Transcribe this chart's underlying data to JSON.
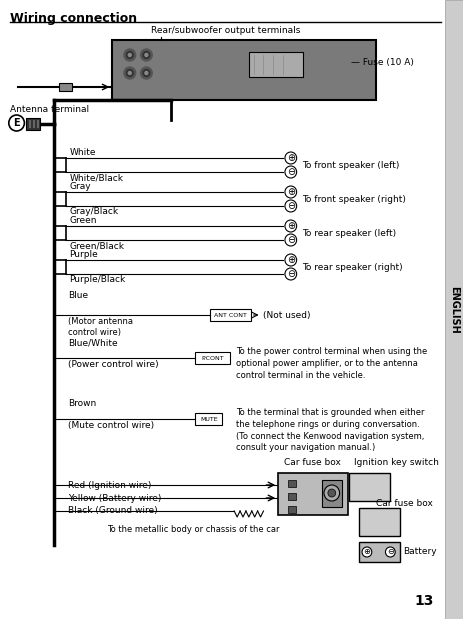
{
  "title": "Wiring connection",
  "bg_color": "#f5f5f0",
  "page_number": "13",
  "sidebar_text": "ENGLISH",
  "sections": [
    {
      "label_top": "White",
      "label_bot": "White/Black",
      "destination": "To front speaker (left)"
    },
    {
      "label_top": "Gray",
      "label_bot": "Gray/Black",
      "destination": "To front speaker (right)"
    },
    {
      "label_top": "Green",
      "label_bot": "Green/Black",
      "destination": "To rear speaker (left)"
    },
    {
      "label_top": "Purple",
      "label_bot": "Purple/Black",
      "destination": "To rear speaker (right)"
    }
  ],
  "antenna_label": "Antenna terminal",
  "rear_label": "Rear/subwoofer output terminals",
  "fuse_label": "Fuse (10 A)",
  "blue_wire": {
    "label_top": "Blue",
    "label_bot": "(Motor antenna\ncontrol wire)",
    "connector_label": "ANT CONT",
    "destination": "(Not used)"
  },
  "blue_white_wire": {
    "label_top": "Blue/White",
    "label_bot": "(Power control wire)",
    "connector_label": "P.CONT",
    "destination": "To the power control terminal when using the\noptional power amplifier, or to the antenna\ncontrol terminal in the vehicle."
  },
  "brown_wire": {
    "label_top": "Brown",
    "label_bot": "(Mute control wire)",
    "connector_label": "MUTE",
    "destination": "To the terminal that is grounded when either\nthe telephone rings or during conversation.\n(To connect the Kenwood navigation system,\nconsult your navigation manual.)"
  },
  "bottom_wires": [
    {
      "label": "Red (Ignition wire)"
    },
    {
      "label": "Yellow (Battery wire)"
    },
    {
      "label": "Black (Ground wire)"
    }
  ],
  "bottom_labels": {
    "car_fuse_box": "Car fuse box",
    "ignition_key": "Ignition key switch",
    "car_fuse_box2": "Car fuse box",
    "battery": "Battery",
    "ground_label": "To the metallic body or chassis of the car"
  }
}
